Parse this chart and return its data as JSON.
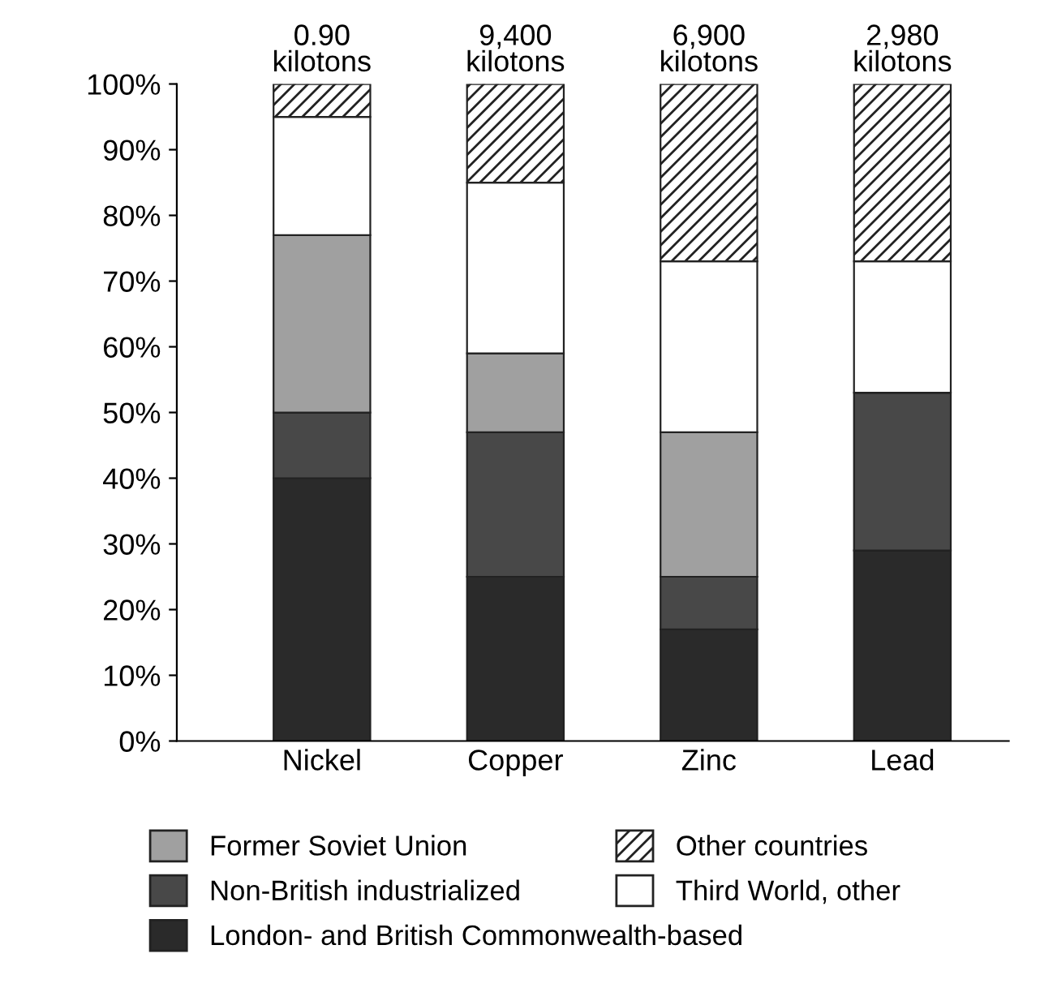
{
  "chart_data": {
    "type": "bar",
    "stacked": true,
    "categories": [
      "Nickel",
      "Copper",
      "Zinc",
      "Lead"
    ],
    "series": [
      {
        "name": "London- and British Commonwealth-based",
        "color": "#2a2a2a",
        "values": [
          40,
          25,
          17,
          29
        ]
      },
      {
        "name": "Non-British industrialized",
        "color": "#484848",
        "values": [
          10,
          22,
          8,
          24
        ]
      },
      {
        "name": "Former Soviet Union",
        "color": "#a0a0a0",
        "values": [
          27,
          12,
          22,
          0
        ]
      },
      {
        "name": "Third World, other",
        "color": "#ffffff",
        "values": [
          18,
          26,
          26,
          20
        ]
      },
      {
        "name": "Other countries",
        "color": "#222222",
        "values": [
          5,
          15,
          27,
          27
        ]
      }
    ],
    "annotations": [
      {
        "text": "0.90\nkilotons",
        "x": "Nickel",
        "y": 100
      },
      {
        "text": "9,400\nkilotons",
        "x": "Copper",
        "y": 100
      },
      {
        "text": "6,900\nkilotons",
        "x": "Zinc",
        "y": 100
      },
      {
        "text": "2,980\nkilotons",
        "x": "Lead",
        "y": 100
      }
    ],
    "ylim": [
      0,
      100
    ],
    "yticks": [
      {
        "value": 0,
        "label": "0%"
      },
      {
        "value": 10,
        "label": "10%"
      },
      {
        "value": 20,
        "label": "20%"
      },
      {
        "value": 30,
        "label": "30%"
      },
      {
        "value": 40,
        "label": "40%"
      },
      {
        "value": 50,
        "label": "50%"
      },
      {
        "value": 60,
        "label": "60%"
      },
      {
        "value": 70,
        "label": "70%"
      },
      {
        "value": 80,
        "label": "80%"
      },
      {
        "value": 90,
        "label": "90%"
      },
      {
        "value": 100,
        "label": "100%"
      }
    ],
    "grid": false,
    "legend": "bottom"
  }
}
